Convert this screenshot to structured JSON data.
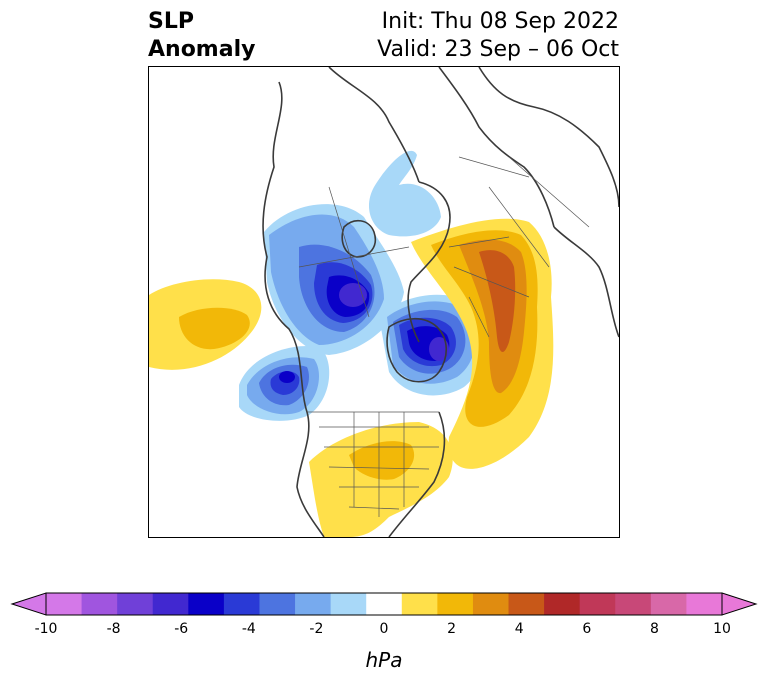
{
  "title": {
    "left_line1": "SLP",
    "left_line2": "Anomaly",
    "right_line1": "Init: Thu 08 Sep 2022",
    "right_line2": "Valid: 23 Sep – 06 Oct"
  },
  "colorbar": {
    "unit_label": "hPa",
    "tick_labels": [
      "-10",
      "-8",
      "-6",
      "-4",
      "-2",
      "0",
      "2",
      "4",
      "6",
      "8",
      "10"
    ],
    "levels": [
      -10,
      -9,
      -8,
      -7,
      -6,
      -5,
      -4,
      -3,
      -2,
      -1,
      1,
      2,
      3,
      4,
      5,
      6,
      7,
      8,
      9,
      10
    ],
    "colors": [
      "#d478e8",
      "#a055df",
      "#7040d8",
      "#4128d0",
      "#0a00c8",
      "#2a3ad6",
      "#4d74e0",
      "#77aaee",
      "#a8d8f8",
      "#ffffff",
      "#ffe04a",
      "#f2b808",
      "#e08c10",
      "#c85818",
      "#b02828",
      "#c03858",
      "#c84878",
      "#d868a8",
      "#e878d8"
    ]
  },
  "map": {
    "anomalies": [
      {
        "name": "low-hudson-bay",
        "value": -6
      },
      {
        "name": "low-greenland",
        "value": -6
      },
      {
        "name": "low-northeast-pacific",
        "value": -5
      },
      {
        "name": "high-europe",
        "value": 5
      },
      {
        "name": "high-north-atlantic",
        "value": 4
      },
      {
        "name": "high-eastern-us",
        "value": 2
      },
      {
        "name": "high-central-pacific",
        "value": 2
      }
    ]
  }
}
